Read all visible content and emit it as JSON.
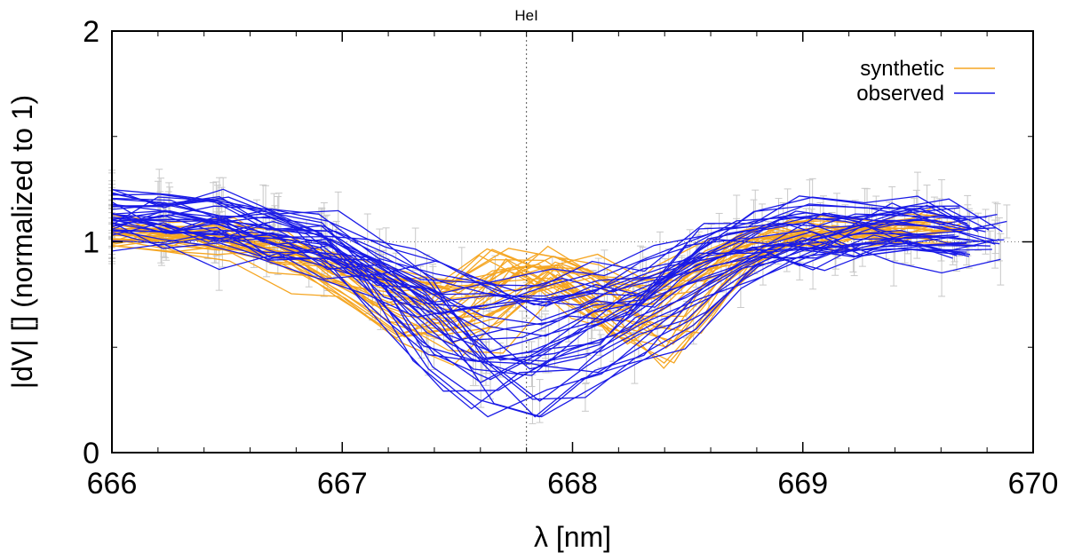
{
  "chart_data": {
    "type": "line",
    "title": "",
    "xlabel": "λ [nm]",
    "ylabel": "|dV| [] (normalized to 1)",
    "ylabel_italic_part": "V",
    "xlim": [
      666,
      670
    ],
    "ylim": [
      0,
      2
    ],
    "xticks": [
      666,
      667,
      668,
      669,
      670
    ],
    "yticks": [
      0,
      1,
      2
    ],
    "xtick_labels": [
      "666",
      "667",
      "668",
      "669",
      "670"
    ],
    "ytick_labels": [
      "0",
      "1",
      "2"
    ],
    "reference_line": {
      "label": "HeI",
      "x": 667.8,
      "style": "dotted"
    },
    "baseline": {
      "y": 1,
      "style": "dotted"
    },
    "legend": {
      "position": "top-right",
      "entries": [
        "synthetic",
        "observed"
      ]
    },
    "colors": {
      "synthetic": "#f5a623",
      "observed": "#1a1ae6",
      "errorbars": "#c8c8c8"
    },
    "observed_x_range": [
      666.0,
      669.9
    ],
    "synthetic_x_range": [
      666.0,
      669.75
    ],
    "series": [
      {
        "name": "synthetic",
        "x": [
          666.0,
          666.5,
          667.0,
          667.2,
          667.4,
          667.6,
          667.8,
          668.0,
          668.2,
          668.4,
          668.6,
          668.8,
          669.0,
          669.5,
          669.75
        ],
        "values": [
          1.04,
          1.03,
          0.82,
          0.7,
          0.62,
          0.7,
          0.92,
          0.8,
          0.62,
          0.62,
          0.88,
          1.0,
          1.04,
          1.06,
          1.06
        ]
      },
      {
        "name": "observed",
        "x": [
          666.0,
          666.2,
          666.4,
          666.6,
          666.8,
          667.0,
          667.2,
          667.4,
          667.6,
          667.8,
          668.0,
          668.2,
          668.4,
          668.6,
          668.8,
          669.0,
          669.2,
          669.4,
          669.6,
          669.8,
          669.9
        ],
        "values": [
          1.1,
          1.1,
          1.09,
          1.07,
          1.02,
          0.97,
          0.86,
          0.7,
          0.56,
          0.56,
          0.66,
          0.7,
          0.78,
          0.92,
          1.0,
          1.04,
          1.06,
          1.06,
          1.05,
          1.03,
          1.02
        ]
      }
    ],
    "curve_counts": {
      "synthetic": 30,
      "observed": 36
    }
  }
}
